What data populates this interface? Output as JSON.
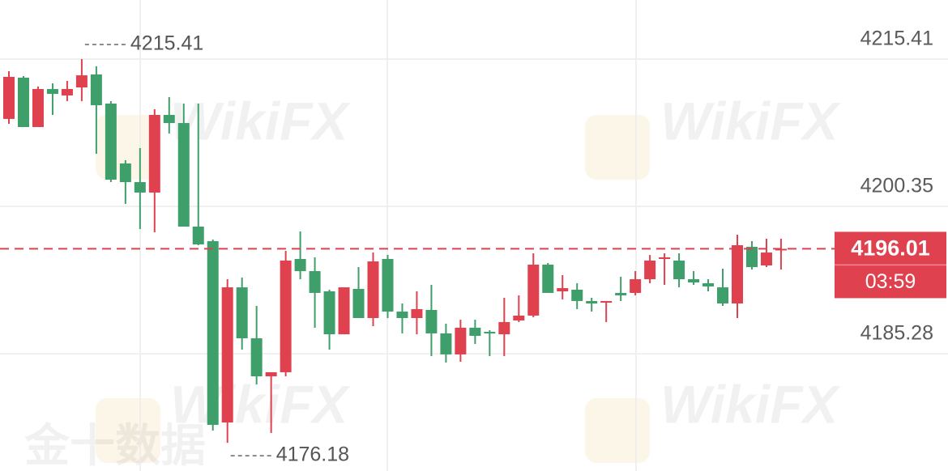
{
  "chart_data": {
    "type": "candlestick",
    "up_color": "#e0414f",
    "down_color": "#3f9f6a",
    "grid": true,
    "ylim": [
      4173.29,
      4221.45
    ],
    "yticks": [
      4185.28,
      4200.35,
      4215.41
    ],
    "open": [
      4209.29,
      4213.51,
      4208.46,
      4212.35,
      4211.69,
      4212.51,
      4213.84,
      4210.86,
      4204.74,
      4202.83,
      4201.76,
      4209.7,
      4208.87,
      4198.28,
      4196.79,
      4178.25,
      4192.07,
      4186.86,
      4182.97,
      4183.39,
      4194.97,
      4193.73,
      4191.66,
      4187.27,
      4191.91,
      4188.93,
      4194.97,
      4189.59,
      4188.93,
      4189.76,
      4187.36,
      4185.21,
      4187.94,
      4187.52,
      4187.27,
      4188.68,
      4189.18,
      4194.39,
      4191.66,
      4191.83,
      4190.67,
      4190.5,
      4191.5,
      4191.5,
      4192.9,
      4194.97,
      4194.81,
      4192.9,
      4192.49,
      4192.07,
      4190.42,
      4196.21,
      4194.31,
      4195.88
    ],
    "high": [
      4214.17,
      4213.67,
      4212.6,
      4212.93,
      4213.18,
      4215.41,
      4214.67,
      4211.11,
      4205.07,
      4206.31,
      4210.28,
      4211.52,
      4210.86,
      4210.86,
      4196.96,
      4192.9,
      4193.07,
      4190.17,
      4183.39,
      4195.8,
      4197.78,
      4195.14,
      4191.83,
      4192.07,
      4194.14,
      4195.63,
      4195.38,
      4190.42,
      4191.66,
      4192.32,
      4188.35,
      4188.76,
      4188.76,
      4187.69,
      4191.0,
      4191.25,
      4195.55,
      4194.56,
      4193.32,
      4192.49,
      4191.0,
      4190.67,
      4193.15,
      4193.73,
      4195.38,
      4195.55,
      4195.55,
      4193.73,
      4192.9,
      4193.98,
      4197.45,
      4196.79,
      4197.04,
      4197.04
    ],
    "low": [
      4208.79,
      4208.46,
      4208.46,
      4209.7,
      4211.11,
      4211.11,
      4205.73,
      4202.83,
      4200.6,
      4198.03,
      4197.7,
      4207.8,
      4198.28,
      4196.38,
      4177.43,
      4176.18,
      4185.7,
      4182.14,
      4177.18,
      4182.97,
      4192.9,
      4187.94,
      4185.7,
      4187.27,
      4188.93,
      4188.1,
      4188.93,
      4187.36,
      4187.27,
      4185.04,
      4184.38,
      4184.46,
      4186.28,
      4185.04,
      4185.04,
      4188.52,
      4189.01,
      4191.5,
      4190.83,
      4189.84,
      4189.59,
      4188.52,
      4190.67,
      4191.25,
      4192.49,
      4192.32,
      4192.07,
      4192.32,
      4191.66,
      4190.17,
      4188.93,
      4193.89,
      4194.14,
      4193.89
    ],
    "close": [
      4213.59,
      4208.46,
      4212.35,
      4211.85,
      4212.35,
      4213.75,
      4210.69,
      4203.08,
      4202.83,
      4201.76,
      4209.7,
      4208.87,
      4198.28,
      4196.46,
      4178.01,
      4192.07,
      4186.86,
      4182.97,
      4183.39,
      4194.81,
      4193.73,
      4191.5,
      4187.27,
      4192.07,
      4188.93,
      4194.72,
      4189.59,
      4188.93,
      4189.84,
      4187.36,
      4185.21,
      4187.94,
      4187.11,
      4187.36,
      4188.52,
      4189.18,
      4194.39,
      4191.5,
      4191.99,
      4190.67,
      4190.42,
      4190.67,
      4191.25,
      4192.9,
      4194.81,
      4195.14,
      4192.9,
      4192.57,
      4192.16,
      4190.42,
      4196.38,
      4194.14,
      4195.63,
      4196.01
    ],
    "max_label": 4215.41,
    "min_label": 4176.18,
    "last_price": 4196.01,
    "countdown": "03:59",
    "watermark": "WikiFX",
    "watermark_2": "金十数据"
  }
}
